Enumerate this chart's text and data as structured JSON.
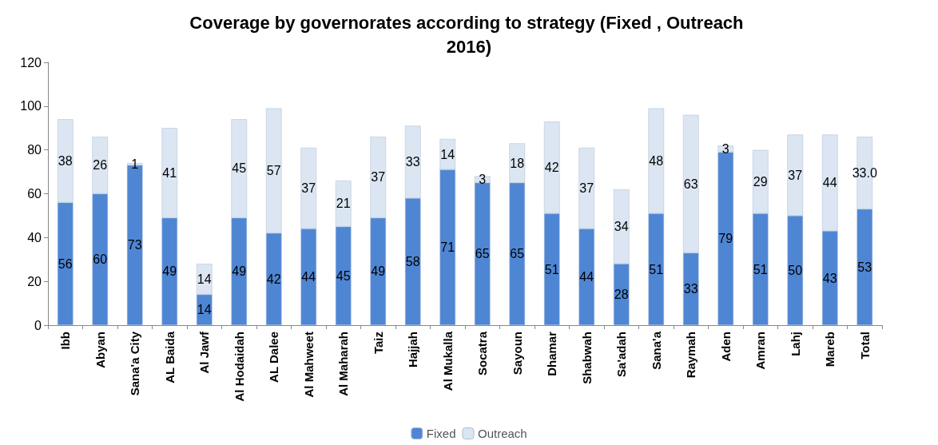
{
  "chart_data": {
    "type": "bar",
    "title": "Coverage by governorates according to strategy (Fixed , Outreach 2016)",
    "categories": [
      "Ibb",
      "Abyan",
      "Sana'a City",
      "AL Baida",
      "Al Jawf",
      "Al Hodaidah",
      "AL Dalee",
      "Al Mahweet",
      "Al Maharah",
      "Taiz",
      "Hajjah",
      "Al Mukalla",
      "Socatra",
      "Sayoun",
      "Dhamar",
      "Shabwah",
      "Sa'adah",
      "Sana'a",
      "Raymah",
      "Aden",
      "Amran",
      "Lahj",
      "Mareb",
      "Total"
    ],
    "series": [
      {
        "name": "Fixed",
        "color": "#4f86d4",
        "values": [
          56,
          60,
          73,
          49,
          14,
          49,
          42,
          44,
          45,
          49,
          58,
          71,
          65,
          65,
          51,
          44,
          28,
          51,
          33,
          79,
          51,
          50,
          43,
          53
        ],
        "value_labels": [
          "56",
          "60",
          "73",
          "49",
          "14",
          "49",
          "42",
          "44",
          "45",
          "49",
          "58",
          "71",
          "65",
          "65",
          "51",
          "44",
          "28",
          "51",
          "33",
          "79",
          "51",
          "50",
          "43",
          "53"
        ]
      },
      {
        "name": "Outreach",
        "color": "#dce6f2",
        "values": [
          38,
          26,
          1,
          41,
          14,
          45,
          57,
          37,
          21,
          37,
          33,
          14,
          3,
          18,
          42,
          37,
          34,
          48,
          63,
          3,
          29,
          37,
          44,
          33
        ],
        "value_labels": [
          "38",
          "26",
          "1",
          "41",
          "14",
          "45",
          "57",
          "37",
          "21",
          "37",
          "33",
          "14",
          "3",
          "18",
          "42",
          "37",
          "34",
          "48",
          "63",
          "3",
          "29",
          "37",
          "44",
          "33.0"
        ]
      }
    ],
    "stacked": true,
    "ylim": [
      0,
      120
    ],
    "yticks": [
      0,
      20,
      40,
      60,
      80,
      100,
      120
    ],
    "grid": false,
    "legend": "bottom"
  }
}
